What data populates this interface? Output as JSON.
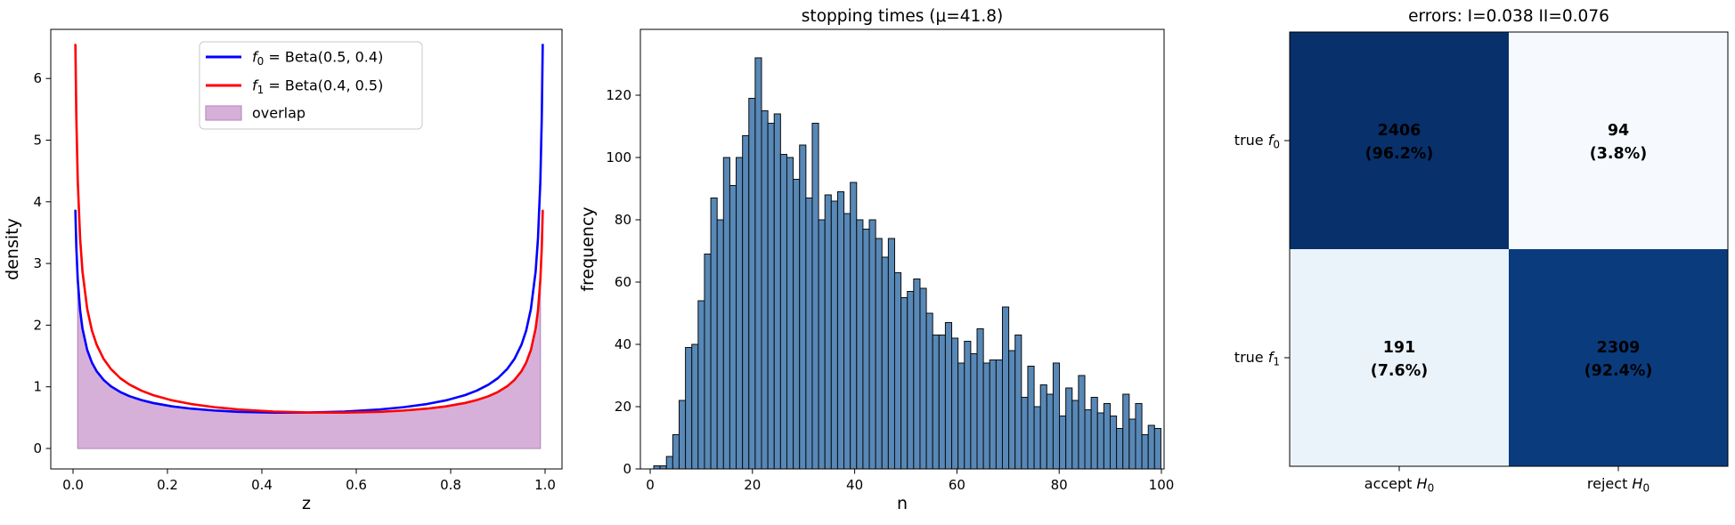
{
  "figure": {
    "background": "#ffffff"
  },
  "chart_data": [
    {
      "id": "density-panel",
      "type": "line",
      "title": "",
      "xlabel": "z",
      "ylabel": "density",
      "xlim": [
        -0.047,
        1.036
      ],
      "ylim": [
        -0.33,
        6.8
      ],
      "grid": false,
      "legend_position": "upper-center",
      "xticks": {
        "values": [
          0.0,
          0.2,
          0.4,
          0.6,
          0.8,
          1.0
        ],
        "labels": [
          "0.0",
          "0.2",
          "0.4",
          "0.6",
          "0.8",
          "1.0"
        ]
      },
      "yticks": {
        "values": [
          0,
          1,
          2,
          3,
          4,
          5,
          6
        ],
        "labels": [
          "0",
          "1",
          "2",
          "3",
          "4",
          "5",
          "6"
        ]
      },
      "x": [
        0.005,
        0.007,
        0.01,
        0.015,
        0.02,
        0.03,
        0.04,
        0.05,
        0.065,
        0.08,
        0.1,
        0.12,
        0.145,
        0.17,
        0.21,
        0.25,
        0.3,
        0.35,
        0.425,
        0.5,
        0.575,
        0.65,
        0.7,
        0.75,
        0.79,
        0.83,
        0.855,
        0.88,
        0.9,
        0.92,
        0.935,
        0.95,
        0.96,
        0.97,
        0.98,
        0.985,
        0.99,
        0.993,
        0.995
      ],
      "series": [
        {
          "key": "f0",
          "label_parts": {
            "sym": "f",
            "sub": "0",
            "rest": " = Beta(0.5, 0.4)"
          },
          "color": "#0000ff",
          "y": [
            3.855,
            3.262,
            2.734,
            2.239,
            1.945,
            1.598,
            1.393,
            1.253,
            1.11,
            1.01,
            0.916,
            0.847,
            0.784,
            0.737,
            0.683,
            0.646,
            0.615,
            0.595,
            0.581,
            0.583,
            0.599,
            0.633,
            0.669,
            0.721,
            0.78,
            0.864,
            0.937,
            1.034,
            1.14,
            1.291,
            1.45,
            1.683,
            1.913,
            2.264,
            2.871,
            3.408,
            4.339,
            5.365,
            6.545
          ]
        },
        {
          "key": "f1",
          "label_parts": {
            "sym": "f",
            "sub": "1",
            "rest": " = Beta(0.4, 0.5)"
          },
          "color": "#ff0000",
          "y": [
            6.545,
            5.365,
            4.339,
            3.408,
            2.871,
            2.264,
            1.913,
            1.683,
            1.45,
            1.291,
            1.14,
            1.034,
            0.937,
            0.864,
            0.78,
            0.721,
            0.669,
            0.633,
            0.599,
            0.583,
            0.581,
            0.595,
            0.615,
            0.646,
            0.683,
            0.737,
            0.784,
            0.847,
            0.916,
            1.01,
            1.11,
            1.253,
            1.393,
            1.598,
            1.945,
            2.239,
            2.734,
            3.262,
            3.855
          ]
        }
      ],
      "overlap": {
        "label": "overlap",
        "fill": "#d7b0da",
        "edge": "#b98fc0",
        "x": [
          0.01,
          0.015,
          0.02,
          0.03,
          0.04,
          0.05,
          0.065,
          0.08,
          0.1,
          0.12,
          0.145,
          0.17,
          0.21,
          0.25,
          0.3,
          0.35,
          0.425,
          0.5,
          0.575,
          0.65,
          0.7,
          0.75,
          0.79,
          0.83,
          0.855,
          0.88,
          0.9,
          0.92,
          0.935,
          0.95,
          0.96,
          0.97,
          0.98,
          0.985,
          0.99
        ],
        "y": [
          2.734,
          2.239,
          1.945,
          1.598,
          1.393,
          1.253,
          1.11,
          1.01,
          0.916,
          0.847,
          0.784,
          0.737,
          0.683,
          0.646,
          0.615,
          0.595,
          0.581,
          0.583,
          0.581,
          0.595,
          0.615,
          0.646,
          0.683,
          0.737,
          0.784,
          0.847,
          0.916,
          1.01,
          1.11,
          1.253,
          1.393,
          1.598,
          1.945,
          2.239,
          2.734
        ]
      }
    },
    {
      "id": "stopping-times-panel",
      "type": "bar",
      "title": "stopping times (μ=41.8)",
      "xlabel": "n",
      "ylabel": "frequency",
      "xlim": [
        -1.9,
        100.5
      ],
      "ylim": [
        0,
        141
      ],
      "grid": false,
      "xticks": {
        "values": [
          0,
          20,
          40,
          60,
          80,
          100
        ],
        "labels": [
          "0",
          "20",
          "40",
          "60",
          "80",
          "100"
        ]
      },
      "yticks": {
        "values": [
          0,
          20,
          40,
          60,
          80,
          100,
          120
        ],
        "labels": [
          "0",
          "20",
          "40",
          "60",
          "80",
          "100",
          "120"
        ]
      },
      "bar_color": "#5788b7",
      "bar_edge": "#0d0d0d",
      "bin_start": 0.7,
      "bin_width": 1.24,
      "values": [
        1,
        1,
        4,
        11,
        22,
        39,
        40,
        54,
        69,
        87,
        80,
        100,
        91,
        100,
        107,
        119,
        132,
        115,
        111,
        114,
        101,
        100,
        93,
        104,
        87,
        111,
        80,
        88,
        86,
        89,
        82,
        92,
        80,
        77,
        80,
        74,
        68,
        74,
        63,
        55,
        57,
        61,
        58,
        50,
        43,
        43,
        47,
        42,
        34,
        41,
        37,
        45,
        34,
        35,
        35,
        52,
        38,
        43,
        23,
        33,
        20,
        27,
        24,
        34,
        17,
        26,
        22,
        30,
        19,
        23,
        18,
        21,
        17,
        13,
        24,
        16,
        21,
        11,
        14,
        13
      ]
    },
    {
      "id": "confusion-panel",
      "type": "heatmap",
      "title": "errors: I=0.038 II=0.076",
      "rows": [
        {
          "pre": "true ",
          "sym": "f",
          "sub": "0"
        },
        {
          "pre": "true ",
          "sym": "f",
          "sub": "1"
        }
      ],
      "cols": [
        {
          "pre": "accept ",
          "sym": "H",
          "sub": "0"
        },
        {
          "pre": "reject ",
          "sym": "H",
          "sub": "0"
        }
      ],
      "cells": [
        [
          {
            "count": "2406",
            "pct": "(96.2%)",
            "bg": "#08306b",
            "fg": "#ffffff"
          },
          {
            "count": "94",
            "pct": "(3.8%)",
            "bg": "#f6fafe",
            "fg": "#111111"
          }
        ],
        [
          {
            "count": "191",
            "pct": "(7.6%)",
            "bg": "#ebf3fa",
            "fg": "#111111"
          },
          {
            "count": "2309",
            "pct": "(92.4%)",
            "bg": "#0a3b7d",
            "fg": "#ffffff"
          }
        ]
      ]
    }
  ]
}
